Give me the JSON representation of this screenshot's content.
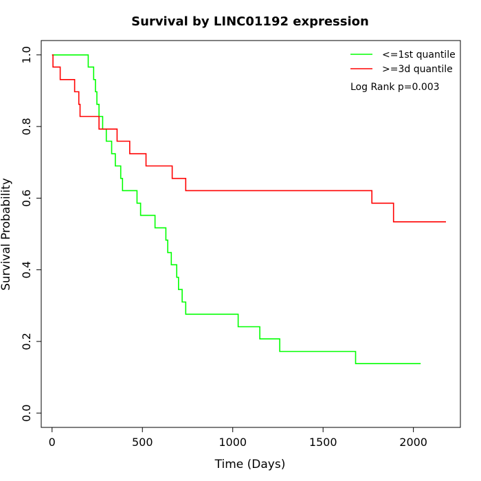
{
  "chart_data": {
    "type": "line",
    "title": "Survival by LINC01192 expression",
    "xlabel": "Time (Days)",
    "ylabel": "Survival Probability",
    "xlim": [
      -60,
      2260
    ],
    "ylim": [
      -0.04,
      1.04
    ],
    "xticks": [
      0,
      500,
      1000,
      1500,
      2000
    ],
    "yticks": [
      0.0,
      0.2,
      0.4,
      0.6,
      0.8,
      1.0
    ],
    "xtick_labels": [
      "0",
      "500",
      "1000",
      "1500",
      "2000"
    ],
    "ytick_labels": [
      "0.0",
      "0.2",
      "0.4",
      "0.6",
      "0.8",
      "1.0"
    ],
    "grid": false,
    "legend_position": "top-right",
    "annotation": "Log Rank p=0.003",
    "series": [
      {
        "name": "<=1st quantile",
        "color": "#00ff00",
        "step": true,
        "x": [
          0,
          200,
          230,
          240,
          248,
          260,
          280,
          300,
          330,
          350,
          380,
          390,
          470,
          490,
          570,
          630,
          640,
          660,
          690,
          700,
          720,
          740,
          770,
          1030,
          1150,
          1260,
          1680,
          2040
        ],
        "y": [
          1.0,
          0.966,
          0.931,
          0.897,
          0.862,
          0.828,
          0.793,
          0.759,
          0.724,
          0.69,
          0.655,
          0.621,
          0.586,
          0.552,
          0.517,
          0.483,
          0.448,
          0.414,
          0.379,
          0.345,
          0.31,
          0.276,
          0.276,
          0.241,
          0.207,
          0.172,
          0.138,
          0.138
        ]
      },
      {
        "name": ">=3d quantile",
        "color": "#ff0000",
        "step": true,
        "x": [
          0,
          5,
          45,
          125,
          148,
          155,
          260,
          360,
          430,
          520,
          665,
          740,
          1770,
          1890,
          2180
        ],
        "y": [
          1.0,
          0.966,
          0.931,
          0.897,
          0.862,
          0.828,
          0.793,
          0.759,
          0.724,
          0.69,
          0.655,
          0.621,
          0.586,
          0.534,
          0.534
        ]
      }
    ]
  }
}
